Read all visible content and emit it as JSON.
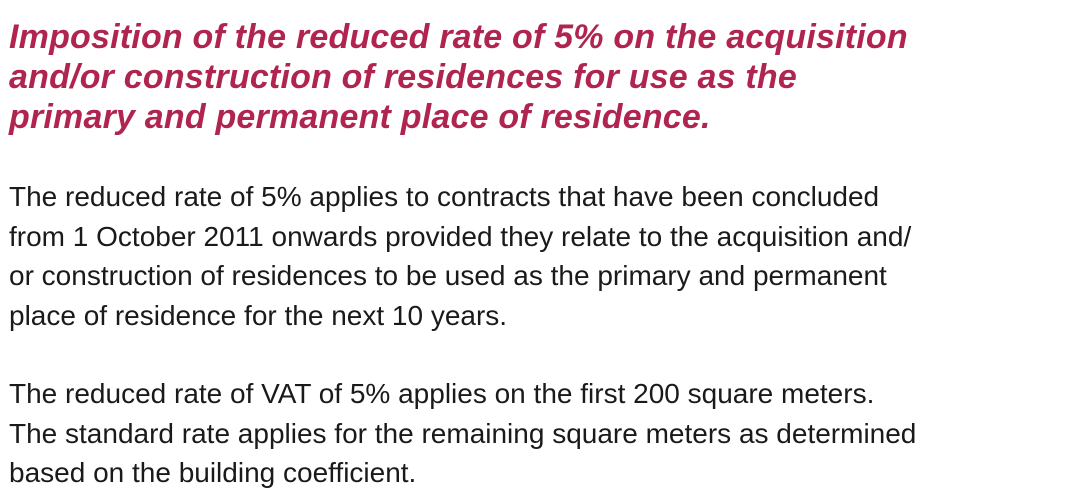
{
  "colors": {
    "heading": "#B0254F",
    "body_text": "#1A1A1A",
    "background": "#FFFFFF"
  },
  "heading": {
    "lines": [
      "Imposition of the reduced rate of 5% on the acquisition",
      "and/or construction of residences for use as the",
      "primary and permanent place of residence."
    ]
  },
  "paragraphs": [
    {
      "lines": [
        "The reduced rate of 5% applies to contracts that have been concluded",
        "from 1 October 2011 onwards provided they relate to the acquisition and/",
        "or construction of residences to be used as the primary and permanent",
        "place of residence for the next 10 years."
      ]
    },
    {
      "lines": [
        "The reduced rate of VAT of 5% applies on the first 200 square meters.",
        "The standard rate applies for the remaining square meters as determined",
        "based on the building coefficient."
      ]
    }
  ]
}
